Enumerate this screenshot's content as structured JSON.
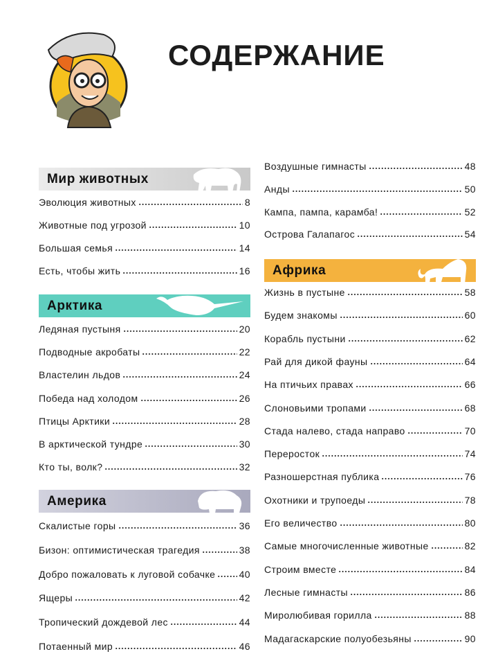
{
  "title": "СОДЕРЖАНИЕ",
  "colors": {
    "mir": "#cfcfcf",
    "arctic": "#5fcfbf",
    "america": "#babacb",
    "africa": "#f4b23e"
  },
  "sections": {
    "mir": {
      "label": "Мир животных",
      "icon": "elephant-icon",
      "items": [
        {
          "title": "Эволюция животных",
          "page": "8"
        },
        {
          "title": "Животные под угрозой",
          "page": "10"
        },
        {
          "title": "Большая семья",
          "page": "14"
        },
        {
          "title": "Есть, чтобы жить",
          "page": "16"
        }
      ]
    },
    "arctic": {
      "label": "Арктика",
      "icon": "narwhal-icon",
      "items": [
        {
          "title": "Ледяная пустыня",
          "page": "20"
        },
        {
          "title": "Подводные акробаты",
          "page": "22"
        },
        {
          "title": "Властелин льдов",
          "page": "24"
        },
        {
          "title": "Победа над холодом",
          "page": "26"
        },
        {
          "title": "Птицы Арктики",
          "page": "28"
        },
        {
          "title": "В арктической тундре",
          "page": "30"
        },
        {
          "title": "Кто ты, волк?",
          "page": "32"
        }
      ]
    },
    "america": {
      "label": "Америка",
      "icon": "bison-icon",
      "items": [
        {
          "title": "Скалистые горы",
          "page": "36"
        },
        {
          "title": "Бизон: оптимистическая трагедия",
          "page": "38"
        },
        {
          "title": "Добро пожаловать к луговой собачке",
          "page": "40"
        },
        {
          "title": "Ящеры",
          "page": "42"
        },
        {
          "title": "Тропический дождевой лес",
          "page": "44"
        },
        {
          "title": "Потаенный мир",
          "page": "46"
        },
        {
          "title": "Воздушные гимнасты",
          "page": "48"
        },
        {
          "title": "Анды",
          "page": "50"
        },
        {
          "title": "Кампа, пампа, карамба!",
          "page": "52"
        },
        {
          "title": "Острова Галапагос",
          "page": "54"
        }
      ]
    },
    "africa": {
      "label": "Африка",
      "icon": "lion-icon",
      "items": [
        {
          "title": "Жизнь в пустыне",
          "page": "58"
        },
        {
          "title": "Будем знакомы",
          "page": "60"
        },
        {
          "title": "Корабль пустыни",
          "page": "62"
        },
        {
          "title": "Рай для дикой фауны",
          "page": "64"
        },
        {
          "title": "На птичьих правах",
          "page": "66"
        },
        {
          "title": "Слоновьими тропами",
          "page": "68"
        },
        {
          "title": "Стада налево, стада направо",
          "page": "70"
        },
        {
          "title": "Переросток",
          "page": "74"
        },
        {
          "title": "Разношерстная публика",
          "page": "76"
        },
        {
          "title": "Охотники и трупоеды",
          "page": "78"
        },
        {
          "title": "Его величество",
          "page": "80"
        },
        {
          "title": "Самые многочисленные животные",
          "page": "82"
        },
        {
          "title": "Строим вместе",
          "page": "84"
        },
        {
          "title": "Лесные гимнасты",
          "page": "86"
        },
        {
          "title": "Миролюбивая горилла",
          "page": "88"
        },
        {
          "title": "Мадагаскарские полуобезьяны",
          "page": "90"
        }
      ]
    }
  }
}
